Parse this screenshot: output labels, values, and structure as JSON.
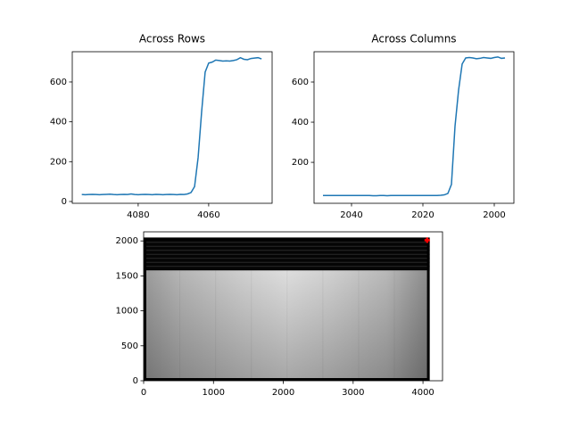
{
  "chart_data": [
    {
      "type": "line",
      "title": "Across Rows",
      "color": "#1f77b4",
      "x": [
        4096,
        4095,
        4094,
        4093,
        4092,
        4091,
        4090,
        4089,
        4088,
        4087,
        4086,
        4085,
        4084,
        4083,
        4082,
        4081,
        4080,
        4079,
        4078,
        4077,
        4076,
        4075,
        4074,
        4073,
        4072,
        4071,
        4070,
        4069,
        4068,
        4067,
        4066,
        4065,
        4064,
        4063,
        4062,
        4061,
        4060,
        4059,
        4058,
        4057,
        4056,
        4055,
        4054,
        4053,
        4052,
        4051,
        4050,
        4049,
        4048,
        4047,
        4046,
        4045
      ],
      "values": [
        35,
        34,
        35,
        36,
        35,
        34,
        35,
        36,
        37,
        35,
        34,
        35,
        36,
        35,
        38,
        35,
        34,
        35,
        36,
        35,
        34,
        36,
        35,
        34,
        35,
        36,
        35,
        34,
        36,
        35,
        38,
        45,
        75,
        220,
        450,
        650,
        695,
        700,
        710,
        708,
        705,
        706,
        705,
        708,
        712,
        722,
        714,
        712,
        718,
        720,
        722,
        716
      ],
      "xlim": [
        4098.7,
        4042
      ],
      "xticks": [
        4080,
        4060
      ],
      "ylim": [
        -9,
        752
      ],
      "yticks": [
        0,
        200,
        400,
        600
      ]
    },
    {
      "type": "line",
      "title": "Across Columns",
      "color": "#1f77b4",
      "x": [
        2048,
        2047,
        2046,
        2045,
        2044,
        2043,
        2042,
        2041,
        2040,
        2039,
        2038,
        2037,
        2036,
        2035,
        2034,
        2033,
        2032,
        2031,
        2030,
        2029,
        2028,
        2027,
        2026,
        2025,
        2024,
        2023,
        2022,
        2021,
        2020,
        2019,
        2018,
        2017,
        2016,
        2015,
        2014,
        2013,
        2012,
        2011,
        2010,
        2009,
        2008,
        2007,
        2006,
        2005,
        2004,
        2003,
        2002,
        2001,
        2000,
        1999,
        1998,
        1997
      ],
      "values": [
        35,
        35,
        35,
        35,
        35,
        35,
        35,
        35,
        35,
        35,
        35,
        35,
        35,
        35,
        34,
        34,
        35,
        35,
        34,
        35,
        35,
        35,
        35,
        35,
        35,
        35,
        35,
        35,
        35,
        35,
        35,
        35,
        35,
        36,
        38,
        45,
        90,
        380,
        560,
        690,
        720,
        722,
        720,
        716,
        718,
        722,
        720,
        718,
        722,
        725,
        718,
        720
      ],
      "xlim": [
        2050.5,
        1994.5
      ],
      "xticks": [
        2040,
        2020,
        2000
      ],
      "ylim": [
        -4,
        751
      ],
      "yticks": [
        200,
        400,
        600
      ]
    },
    {
      "type": "image",
      "extent": [
        0,
        4096,
        0,
        2048
      ],
      "marker": {
        "x": 4060,
        "y": 2010,
        "color": "#ff0000"
      },
      "xlim": [
        0,
        4280
      ],
      "xticks": [
        0,
        1000,
        2000,
        3000,
        4000
      ],
      "ylim": [
        0,
        2130
      ],
      "yticks": [
        0,
        500,
        1000,
        1500,
        2000
      ]
    }
  ]
}
